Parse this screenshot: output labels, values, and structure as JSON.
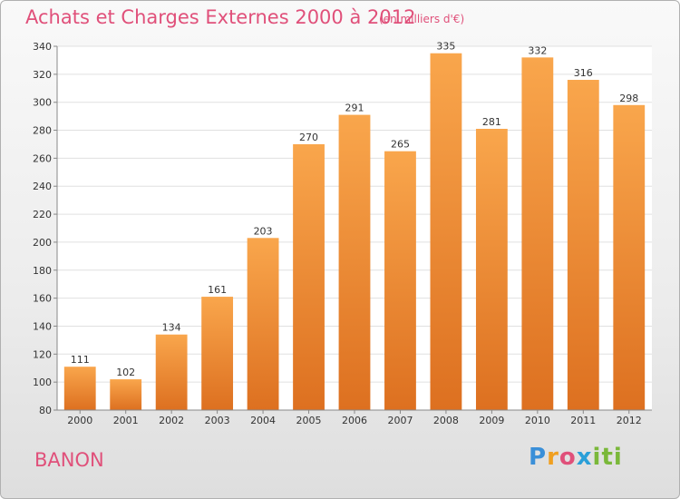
{
  "header": {
    "title": "Achats et Charges Externes 2000 à 2012",
    "subtitle": "(en milliers d'€)"
  },
  "footer": {
    "place": "BANON",
    "logo_text": "Proxiti"
  },
  "colors": {
    "title": "#e0507a",
    "bar_light": "#f9a64c",
    "bar_dark": "#dd7020",
    "grid": "#e0e0e0"
  },
  "chart_data": {
    "type": "bar",
    "title": "Achats et Charges Externes 2000 à 2012",
    "subtitle": "(en milliers d'€)",
    "xlabel": "",
    "ylabel": "",
    "categories": [
      "2000",
      "2001",
      "2002",
      "2003",
      "2004",
      "2005",
      "2006",
      "2007",
      "2008",
      "2009",
      "2010",
      "2011",
      "2012"
    ],
    "values": [
      111,
      102,
      134,
      161,
      203,
      270,
      291,
      265,
      335,
      281,
      332,
      316,
      298
    ],
    "ylim": [
      80,
      340
    ],
    "yticks": [
      80,
      100,
      120,
      140,
      160,
      180,
      200,
      220,
      240,
      260,
      280,
      300,
      320,
      340
    ],
    "grid": true,
    "legend": "none"
  }
}
